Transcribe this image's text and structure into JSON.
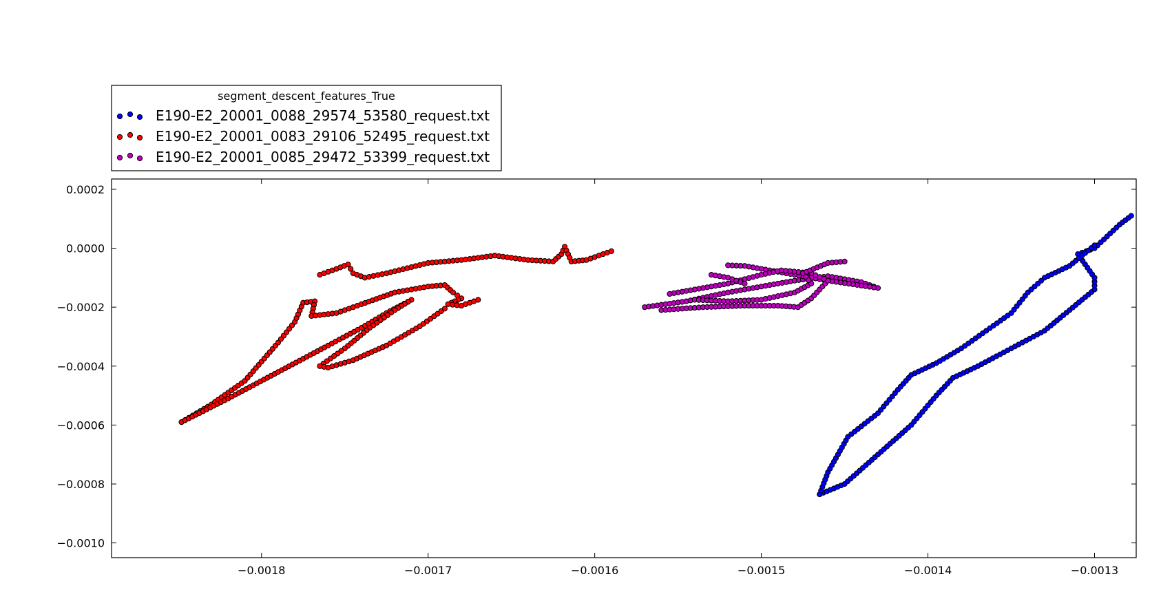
{
  "chart_data": {
    "type": "scatter",
    "title": "",
    "xlabel": "",
    "ylabel": "",
    "xlim": [
      -0.00189,
      -0.001275
    ],
    "ylim": [
      -0.00105,
      0.000235
    ],
    "x_ticks": [
      -0.0018,
      -0.0017,
      -0.0016,
      -0.0015,
      -0.0014,
      -0.0013
    ],
    "x_tick_labels": [
      "−0.0018",
      "−0.0017",
      "−0.0016",
      "−0.0015",
      "−0.0014",
      "−0.0013"
    ],
    "y_ticks": [
      0.0002,
      0.0,
      -0.0002,
      -0.0004,
      -0.0006,
      -0.0008,
      -0.001
    ],
    "y_tick_labels": [
      "0.0002",
      "0.0000",
      "−0.0002",
      "−0.0004",
      "−0.0006",
      "−0.0008",
      "−0.0010"
    ],
    "grid": false,
    "legend": {
      "title": "segment_descent_features_True",
      "placement": "above-left"
    },
    "series": [
      {
        "name": "E190-E2_20001_0088_29574_53580_request.txt",
        "color": "#0000ff",
        "paths": [
          [
            [
              -0.001465,
              -0.000835
            ],
            [
              -0.00145,
              -0.0008
            ],
            [
              -0.00143,
              -0.0007
            ],
            [
              -0.00141,
              -0.0006
            ],
            [
              -0.001395,
              -0.0005
            ],
            [
              -0.001385,
              -0.00044
            ],
            [
              -0.00137,
              -0.0004
            ],
            [
              -0.00135,
              -0.00034
            ],
            [
              -0.00133,
              -0.00028
            ],
            [
              -0.001315,
              -0.00021
            ],
            [
              -0.0013,
              -0.00014
            ],
            [
              -0.0013,
              -0.0001
            ],
            [
              -0.00131,
              -2e-05
            ],
            [
              -0.0013,
              0.0
            ],
            [
              -0.001285,
              8e-05
            ],
            [
              -0.001278,
              0.00011
            ]
          ],
          [
            [
              -0.001465,
              -0.000835
            ],
            [
              -0.00146,
              -0.00076
            ],
            [
              -0.001448,
              -0.00064
            ],
            [
              -0.00143,
              -0.00056
            ],
            [
              -0.001418,
              -0.00048
            ],
            [
              -0.00141,
              -0.00043
            ],
            [
              -0.001395,
              -0.00039
            ],
            [
              -0.00138,
              -0.00034
            ],
            [
              -0.001365,
              -0.00028
            ],
            [
              -0.00135,
              -0.00022
            ],
            [
              -0.00134,
              -0.00015
            ],
            [
              -0.00133,
              -0.0001
            ],
            [
              -0.001315,
              -6e-05
            ],
            [
              -0.0013,
              1e-05
            ]
          ]
        ]
      },
      {
        "name": "E190-E2_20001_0083_29106_52495_request.txt",
        "color": "#ff0000",
        "paths": [
          [
            [
              -0.001848,
              -0.00059
            ],
            [
              -0.00183,
              -0.00053
            ],
            [
              -0.00181,
              -0.00045
            ],
            [
              -0.00179,
              -0.00032
            ],
            [
              -0.00178,
              -0.00025
            ],
            [
              -0.001775,
              -0.000185
            ],
            [
              -0.001768,
              -0.00018
            ],
            [
              -0.00177,
              -0.00023
            ],
            [
              -0.001755,
              -0.00022
            ],
            [
              -0.00174,
              -0.00019
            ],
            [
              -0.00172,
              -0.00015
            ],
            [
              -0.0017,
              -0.00013
            ],
            [
              -0.00169,
              -0.000125
            ],
            [
              -0.001685,
              -0.00015
            ],
            [
              -0.00168,
              -0.00017
            ],
            [
              -0.001688,
              -0.00019
            ],
            [
              -0.00168,
              -0.000195
            ],
            [
              -0.00167,
              -0.000175
            ]
          ],
          [
            [
              -0.001848,
              -0.00059
            ],
            [
              -0.00182,
              -0.00051
            ],
            [
              -0.00179,
              -0.00042
            ],
            [
              -0.00176,
              -0.00033
            ],
            [
              -0.00174,
              -0.00027
            ],
            [
              -0.001725,
              -0.00022
            ],
            [
              -0.00171,
              -0.000175
            ],
            [
              -0.00172,
              -0.00021
            ],
            [
              -0.001735,
              -0.00027
            ],
            [
              -0.00175,
              -0.00034
            ],
            [
              -0.001765,
              -0.0004
            ],
            [
              -0.00176,
              -0.000405
            ],
            [
              -0.001745,
              -0.00038
            ],
            [
              -0.001725,
              -0.00033
            ],
            [
              -0.001705,
              -0.000265
            ],
            [
              -0.00169,
              -0.000205
            ]
          ],
          [
            [
              -0.001765,
              -9e-05
            ],
            [
              -0.001755,
              -7e-05
            ],
            [
              -0.001748,
              -5.5e-05
            ],
            [
              -0.001745,
              -8.5e-05
            ],
            [
              -0.001738,
              -0.0001
            ],
            [
              -0.001725,
              -8.5e-05
            ],
            [
              -0.0017,
              -5e-05
            ],
            [
              -0.00168,
              -4e-05
            ],
            [
              -0.00166,
              -2.5e-05
            ],
            [
              -0.00164,
              -4e-05
            ],
            [
              -0.001625,
              -4.5e-05
            ],
            [
              -0.00162,
              -2e-05
            ],
            [
              -0.001618,
              5e-06
            ],
            [
              -0.001614,
              -4.5e-05
            ],
            [
              -0.001605,
              -4e-05
            ],
            [
              -0.00159,
              -1e-05
            ]
          ]
        ]
      },
      {
        "name": "E190-E2_20001_0085_29472_53399_request.txt",
        "color": "#bf00bf",
        "paths": [
          [
            [
              -0.00157,
              -0.0002
            ],
            [
              -0.001545,
              -0.00018
            ],
            [
              -0.00152,
              -0.00015
            ],
            [
              -0.0015,
              -0.00013
            ],
            [
              -0.00148,
              -0.00011
            ],
            [
              -0.00146,
              -9.5e-05
            ],
            [
              -0.00144,
              -0.000115
            ],
            [
              -0.00143,
              -0.000135
            ],
            [
              -0.00146,
              -0.00011
            ],
            [
              -0.00149,
              -8e-05
            ],
            [
              -0.00151,
              -6e-05
            ],
            [
              -0.00152,
              -5.8e-05
            ]
          ],
          [
            [
              -0.00156,
              -0.00021
            ],
            [
              -0.001535,
              -0.0002
            ],
            [
              -0.00151,
              -0.000195
            ],
            [
              -0.00149,
              -0.000195
            ],
            [
              -0.001478,
              -0.0002
            ],
            [
              -0.00147,
              -0.00017
            ],
            [
              -0.001465,
              -0.00014
            ],
            [
              -0.00146,
              -0.00011
            ],
            [
              -0.00147,
              -8.5e-05
            ],
            [
              -0.001488,
              -7.5e-05
            ],
            [
              -0.0015,
              -9e-05
            ],
            [
              -0.00152,
              -0.00012
            ],
            [
              -0.00154,
              -0.00014
            ],
            [
              -0.001555,
              -0.000155
            ]
          ],
          [
            [
              -0.00154,
              -0.000175
            ],
            [
              -0.00152,
              -0.00018
            ],
            [
              -0.0015,
              -0.000175
            ],
            [
              -0.00148,
              -0.00015
            ],
            [
              -0.00147,
              -0.00012
            ],
            [
              -0.001475,
              -8.5e-05
            ],
            [
              -0.00146,
              -5e-05
            ],
            [
              -0.00145,
              -4.5e-05
            ]
          ],
          [
            [
              -0.00153,
              -9e-05
            ],
            [
              -0.00152,
              -0.0001
            ],
            [
              -0.00151,
              -0.00012
            ]
          ]
        ]
      }
    ]
  }
}
